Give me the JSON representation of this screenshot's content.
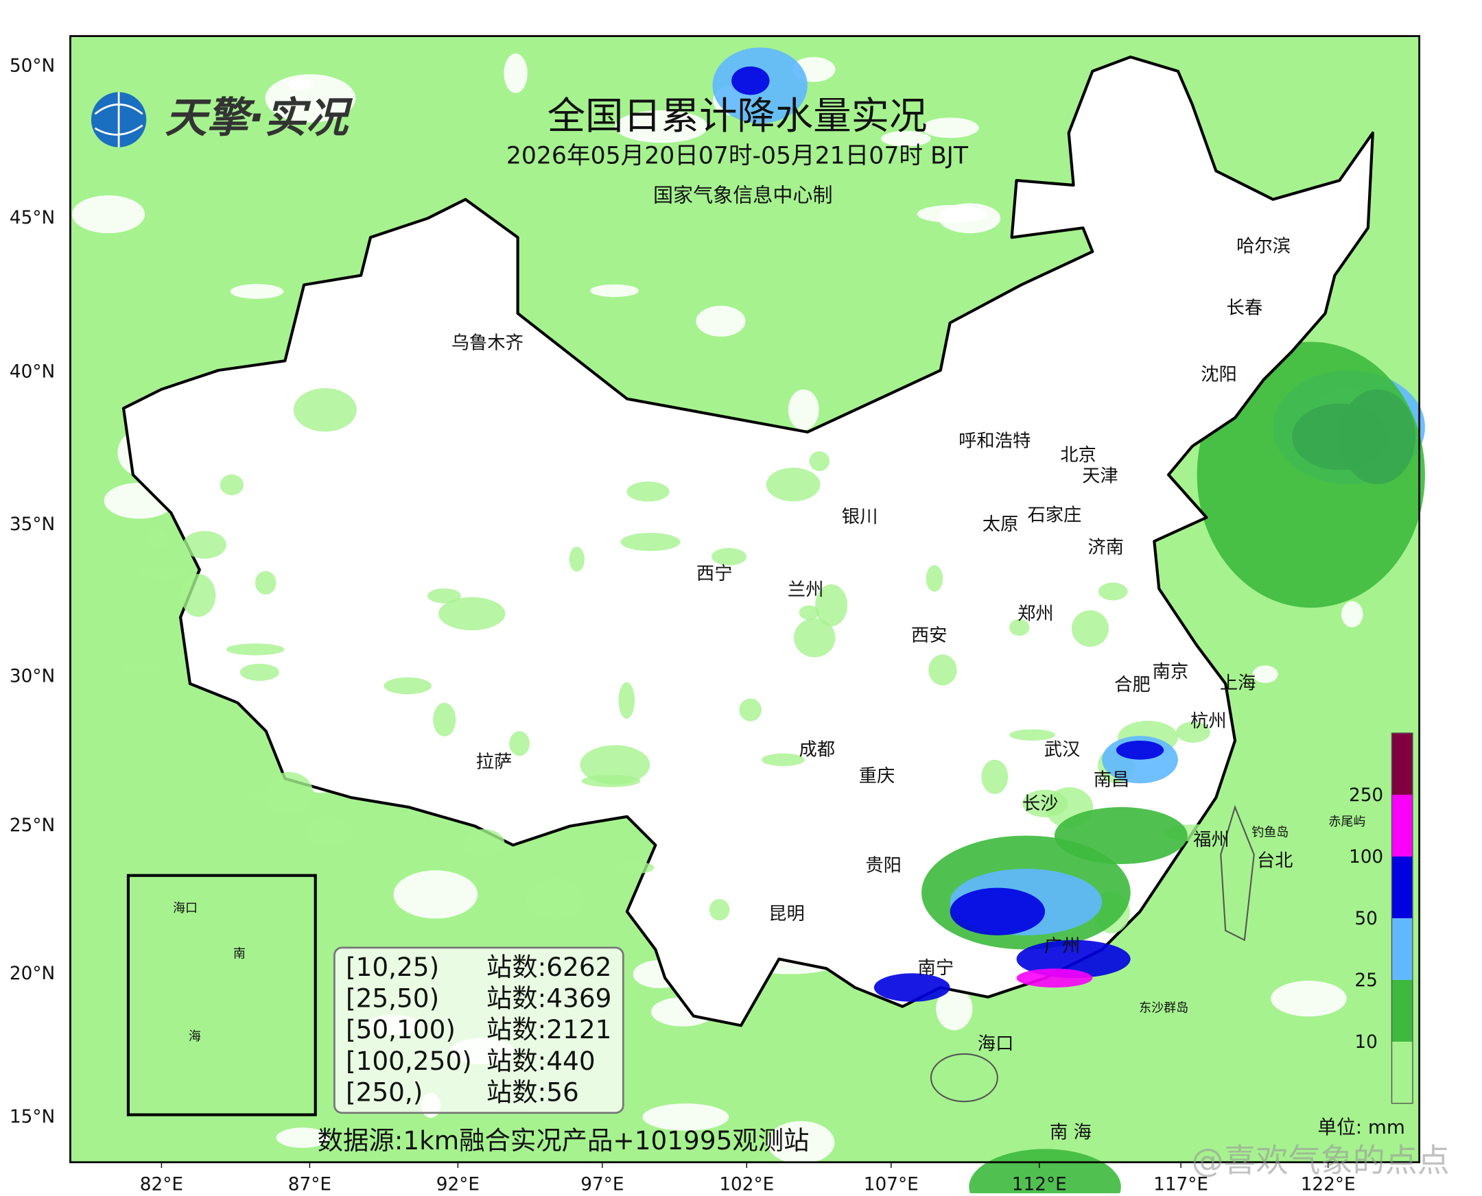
{
  "header": {
    "logo": "天擎·实况",
    "title": "全国日累计降水量实况",
    "subtitle": "2026年05月20日07时-05月21日07时 BJT",
    "producer": "国家气象信息中心制"
  },
  "axes": {
    "lat_labels": [
      "50°N",
      "45°N",
      "40°N",
      "35°N",
      "30°N",
      "25°N",
      "20°N",
      "15°N"
    ],
    "lon_labels": [
      "82°E",
      "87°E",
      "92°E",
      "97°E",
      "102°E",
      "107°E",
      "112°E",
      "117°E",
      "122°E"
    ]
  },
  "cities": [
    "哈尔滨",
    "长春",
    "沈阳",
    "乌鲁木齐",
    "呼和浩特",
    "北京",
    "天津",
    "银川",
    "太原",
    "石家庄",
    "济南",
    "西宁",
    "兰州",
    "郑州",
    "西安",
    "南京",
    "合肥",
    "上海",
    "杭州",
    "武汉",
    "拉萨",
    "成都",
    "重庆",
    "南昌",
    "长沙",
    "福州",
    "台北",
    "贵阳",
    "昆明",
    "南宁",
    "广州",
    "海口",
    "南 海"
  ],
  "small_labels": [
    "钓鱼岛",
    "赤尾屿",
    "东沙群岛"
  ],
  "inset": {
    "labels": [
      "海口",
      "南",
      "海"
    ]
  },
  "legend": {
    "rows": [
      {
        "range": "[10,25)",
        "count": "站数:6262"
      },
      {
        "range": "[25,50)",
        "count": "站数:4369"
      },
      {
        "range": "[50,100)",
        "count": "站数:2121"
      },
      {
        "range": "[100,250)",
        "count": "站数:440"
      },
      {
        "range": "[250,)",
        "count": "站数:56"
      }
    ]
  },
  "colorbar": {
    "labels": [
      "10",
      "25",
      "50",
      "100",
      "250"
    ],
    "unit": "单位: mm"
  },
  "source": "数据源:1km融合实况产品+101995观测站",
  "watermark": "@喜欢气象的点点"
}
